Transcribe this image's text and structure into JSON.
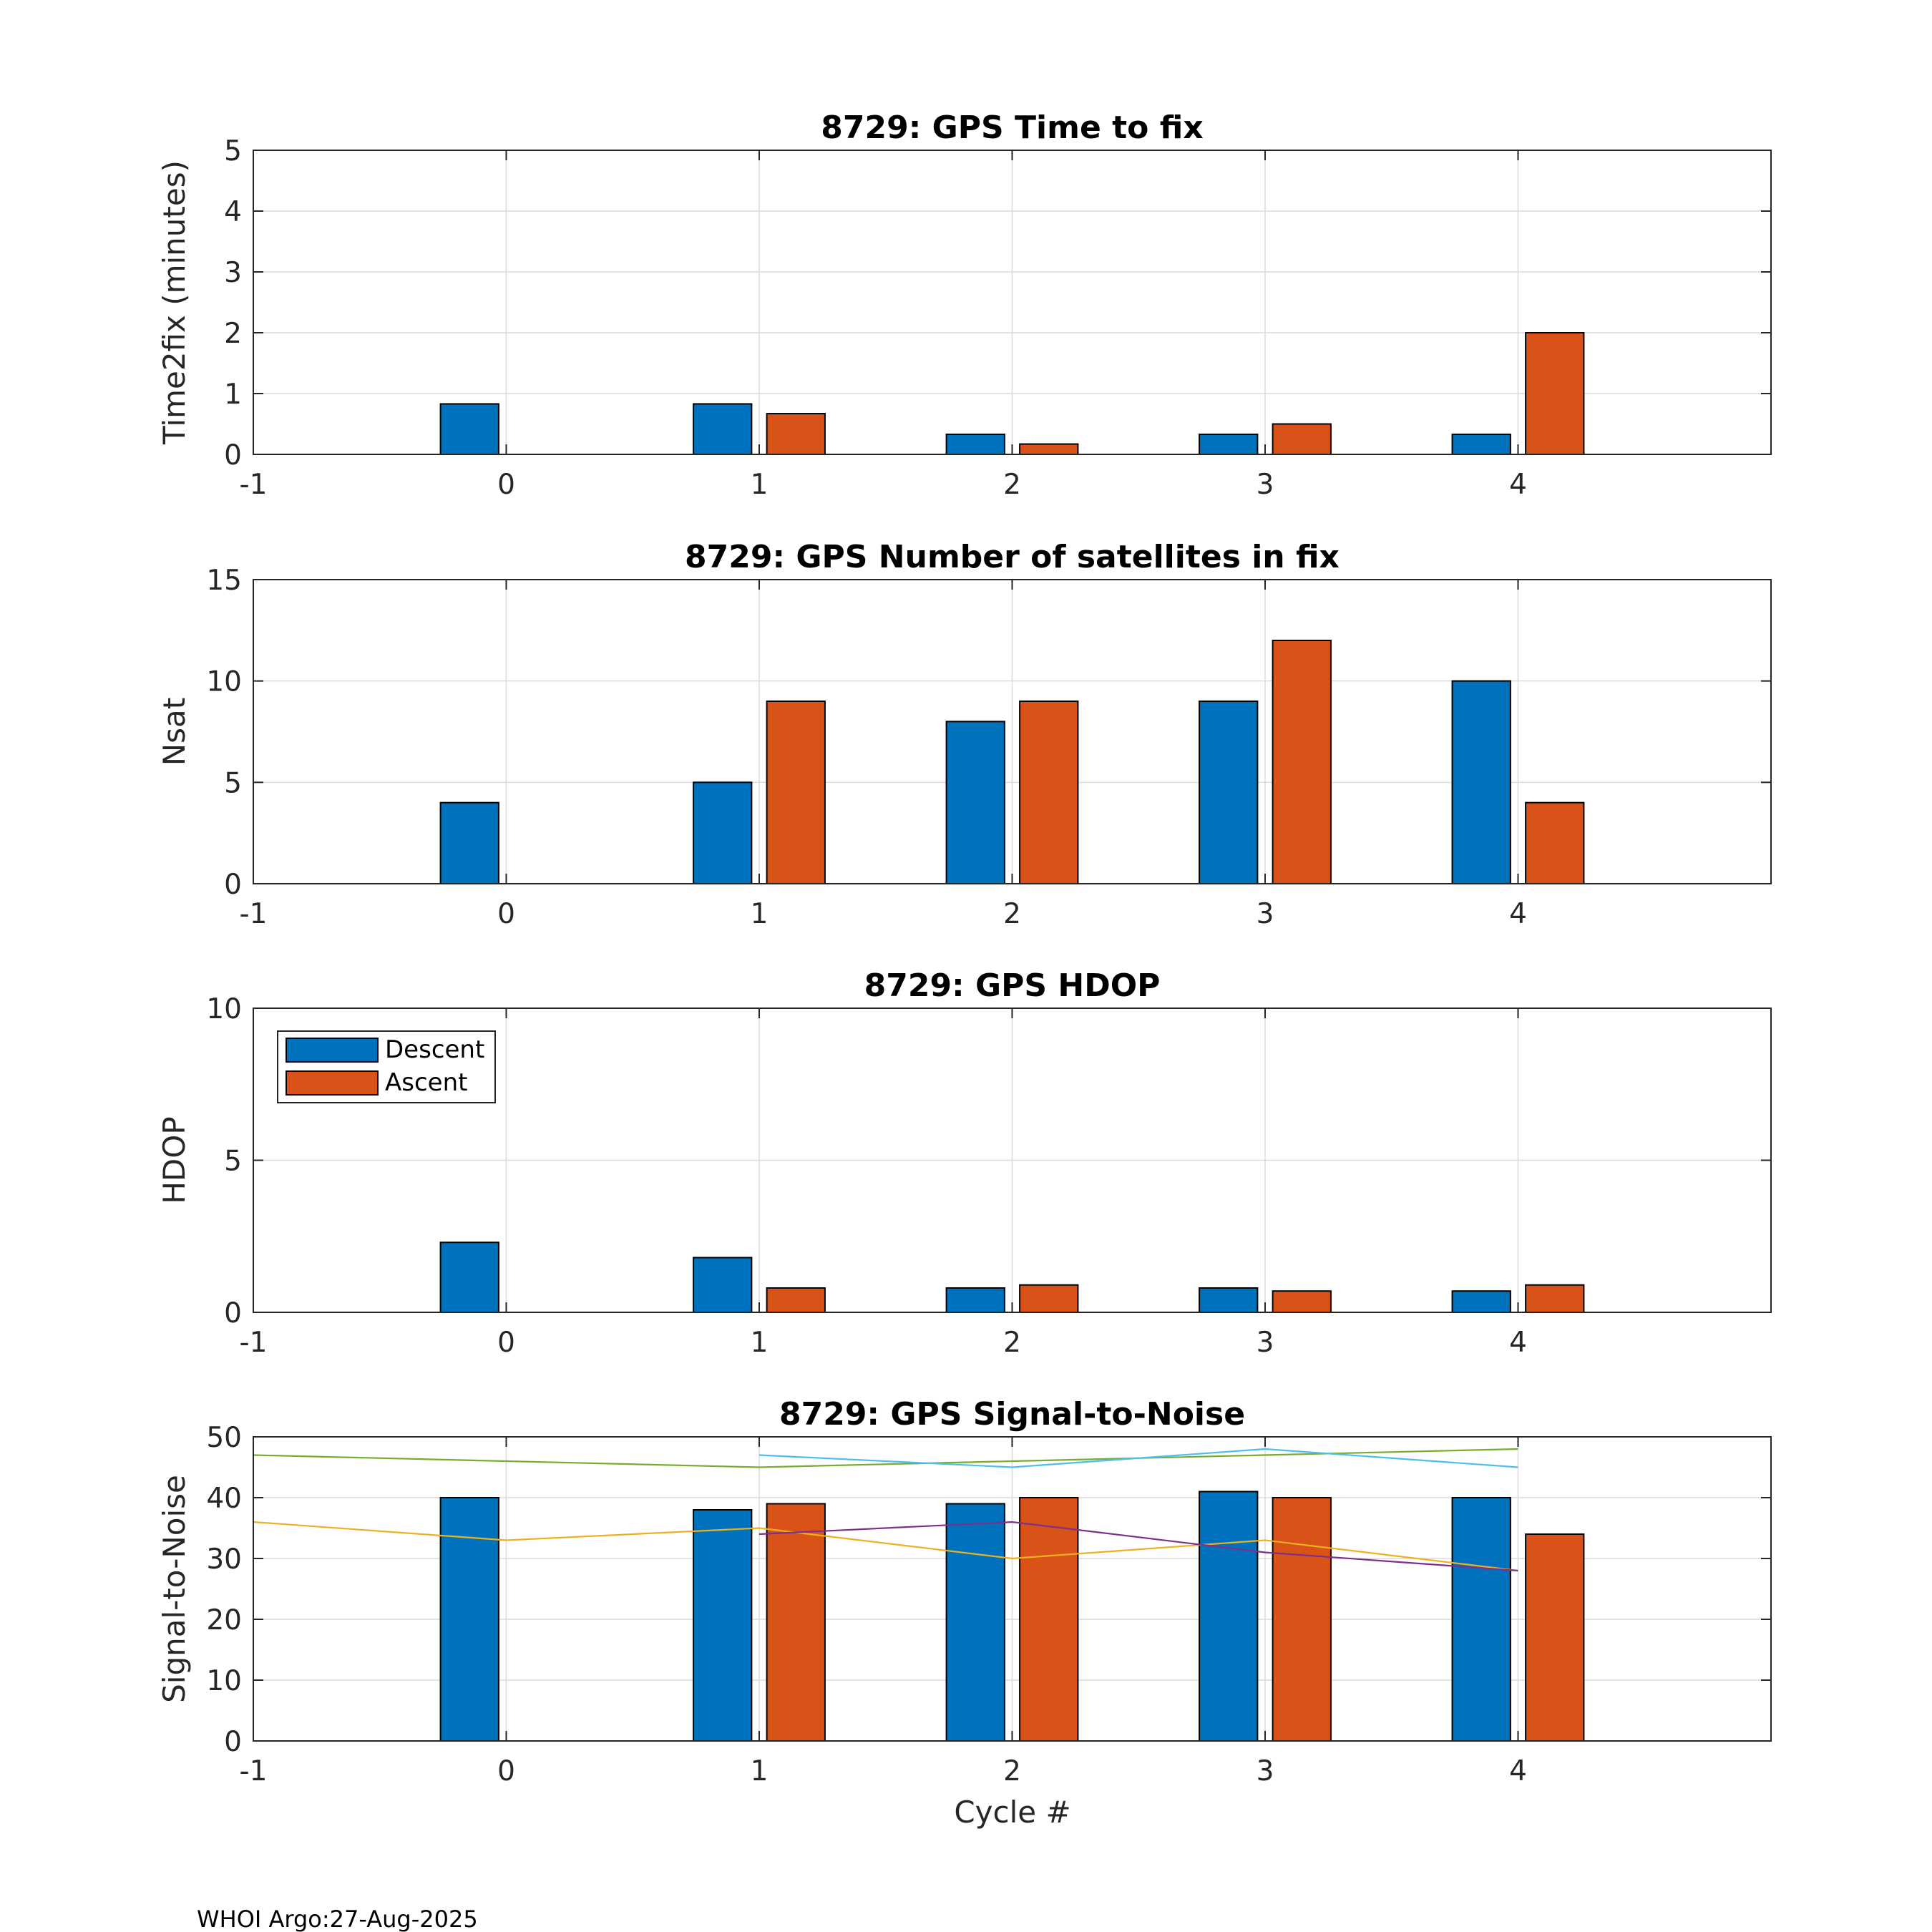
{
  "footer": "WHOI Argo:27-Aug-2025",
  "xlabel": "Cycle #",
  "legend": [
    "Descent",
    "Ascent"
  ],
  "colors": {
    "descent": "#0072BD",
    "ascent": "#D95319",
    "grid": "#dcdcdc",
    "axis": "#262626"
  },
  "chart_data": [
    {
      "type": "bar",
      "title": "8729: GPS Time to fix",
      "ylabel": "Time2fix (minutes)",
      "xlim": [
        -1,
        5
      ],
      "ylim": [
        0,
        5
      ],
      "xticks": [
        -1,
        0,
        1,
        2,
        3,
        4
      ],
      "yticks": [
        0,
        1,
        2,
        3,
        4,
        5
      ],
      "grid": true,
      "categories": [
        0,
        1,
        2,
        3,
        4
      ],
      "series": [
        {
          "name": "Descent",
          "values": [
            0.83,
            0.83,
            0.33,
            0.33,
            0.33
          ]
        },
        {
          "name": "Ascent",
          "values": [
            null,
            0.67,
            0.17,
            0.5,
            2.0
          ]
        }
      ]
    },
    {
      "type": "bar",
      "title": "8729: GPS Number of satellites in fix",
      "ylabel": "Nsat",
      "xlim": [
        -1,
        5
      ],
      "ylim": [
        0,
        15
      ],
      "xticks": [
        -1,
        0,
        1,
        2,
        3,
        4
      ],
      "yticks": [
        0,
        5,
        10,
        15
      ],
      "grid": true,
      "categories": [
        0,
        1,
        2,
        3,
        4
      ],
      "series": [
        {
          "name": "Descent",
          "values": [
            4,
            5,
            8,
            9,
            10
          ]
        },
        {
          "name": "Ascent",
          "values": [
            null,
            9,
            9,
            12,
            4
          ]
        }
      ]
    },
    {
      "type": "bar",
      "title": "8729: GPS HDOP",
      "ylabel": "HDOP",
      "xlim": [
        -1,
        5
      ],
      "ylim": [
        0,
        10
      ],
      "xticks": [
        -1,
        0,
        1,
        2,
        3,
        4
      ],
      "yticks": [
        0,
        5,
        10
      ],
      "grid": true,
      "legend_position": "top-left",
      "categories": [
        0,
        1,
        2,
        3,
        4
      ],
      "series": [
        {
          "name": "Descent",
          "values": [
            2.3,
            1.8,
            0.8,
            0.8,
            0.7
          ]
        },
        {
          "name": "Ascent",
          "values": [
            null,
            0.8,
            0.9,
            0.7,
            0.9
          ]
        }
      ]
    },
    {
      "type": "bar",
      "title": "8729: GPS Signal-to-Noise",
      "ylabel": "Signal-to-Noise",
      "xlabel": "Cycle #",
      "xlim": [
        -1,
        5
      ],
      "ylim": [
        0,
        50
      ],
      "xticks": [
        -1,
        0,
        1,
        2,
        3,
        4
      ],
      "yticks": [
        0,
        10,
        20,
        30,
        40,
        50
      ],
      "grid": true,
      "categories": [
        0,
        1,
        2,
        3,
        4
      ],
      "series": [
        {
          "name": "Descent",
          "values": [
            40,
            38,
            39,
            41,
            40
          ]
        },
        {
          "name": "Ascent",
          "values": [
            null,
            39,
            40,
            40,
            34
          ]
        }
      ],
      "lines": [
        {
          "color": "#77AC30",
          "x": [
            -1,
            0,
            1,
            2,
            3,
            4
          ],
          "y": [
            47,
            46,
            45,
            46,
            47,
            48
          ]
        },
        {
          "color": "#4DBEEE",
          "x": [
            1,
            2,
            3,
            4
          ],
          "y": [
            47,
            45,
            48,
            45
          ]
        },
        {
          "color": "#EDB120",
          "x": [
            -1,
            0,
            1,
            2,
            3,
            4
          ],
          "y": [
            36,
            33,
            35,
            30,
            33,
            28
          ]
        },
        {
          "color": "#7E2F8E",
          "x": [
            1,
            2,
            3,
            4
          ],
          "y": [
            34,
            36,
            31,
            28
          ]
        }
      ]
    }
  ]
}
